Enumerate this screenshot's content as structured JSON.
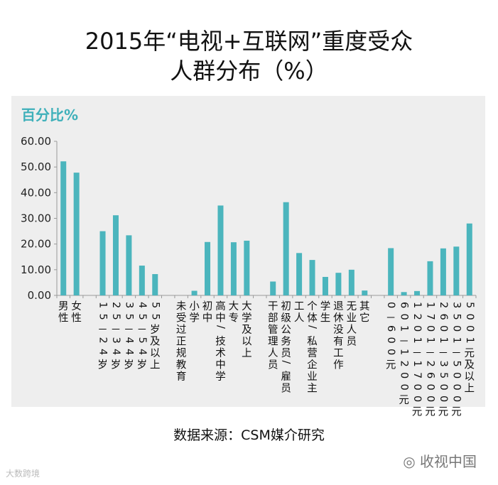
{
  "title_line1": "2015年“电视+互联网”重度受众",
  "title_line2": "人群分布（%）",
  "source": "数据来源：CSM媒介研究",
  "watermark_right": "收视中国",
  "watermark_left": "大数跨境",
  "colors": {
    "bar": "#4bb5bd",
    "ylabel": "#3fb0ba",
    "panel": "#eeeeee"
  },
  "chart_data": {
    "type": "bar",
    "ylabel": "百分比%",
    "ylim": [
      0,
      60
    ],
    "yticks": [
      "0.00",
      "10.00",
      "20.00",
      "30.00",
      "40.00",
      "50.00",
      "60.00"
    ],
    "grid": false,
    "bars": [
      {
        "label": "男性",
        "value": 52.2
      },
      {
        "label": "女性",
        "value": 47.8
      },
      {
        "label": "",
        "value": null
      },
      {
        "label": "15－24岁",
        "value": 25.0
      },
      {
        "label": "25－34岁",
        "value": 31.2
      },
      {
        "label": "35－44岁",
        "value": 23.4
      },
      {
        "label": "45－54岁",
        "value": 11.6
      },
      {
        "label": "55岁及以上",
        "value": 8.3
      },
      {
        "label": "",
        "value": null
      },
      {
        "label": "未受过正规教育",
        "value": 0.0
      },
      {
        "label": "小学",
        "value": 1.8
      },
      {
        "label": "初中",
        "value": 20.8
      },
      {
        "label": "高中/技术中学",
        "value": 35.0
      },
      {
        "label": "大专",
        "value": 20.7
      },
      {
        "label": "大学及以上",
        "value": 21.3
      },
      {
        "label": "",
        "value": null
      },
      {
        "label": "干部管理人员",
        "value": 5.4
      },
      {
        "label": "初级公务员/雇员",
        "value": 36.3
      },
      {
        "label": "工人",
        "value": 16.5
      },
      {
        "label": "个体/私营企业主",
        "value": 13.8
      },
      {
        "label": "学生",
        "value": 7.2
      },
      {
        "label": "退休没有工作",
        "value": 8.8
      },
      {
        "label": "无业人员",
        "value": 10.0
      },
      {
        "label": "其它",
        "value": 1.9
      },
      {
        "label": "",
        "value": null
      },
      {
        "label": "0－600元",
        "value": 18.4
      },
      {
        "label": "601－1200元",
        "value": 1.3
      },
      {
        "label": "1201－1700元",
        "value": 1.7
      },
      {
        "label": "1701－2600元",
        "value": 13.3
      },
      {
        "label": "2601－3500元",
        "value": 18.3
      },
      {
        "label": "3501－5000元",
        "value": 19.0
      },
      {
        "label": "5001元及以上",
        "value": 28.0
      }
    ]
  }
}
